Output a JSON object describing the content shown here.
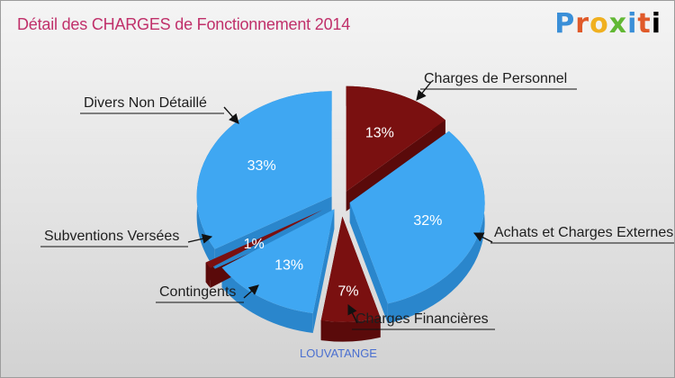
{
  "title": "Détail des CHARGES de Fonctionnement 2014",
  "logo": [
    "P",
    "r",
    "o",
    "x",
    "i",
    "t",
    "i"
  ],
  "location": "LOUVATANGE",
  "colors": {
    "blue": "#3fa7f2",
    "blue_side": "#2a86cc",
    "red": "#7a1010",
    "red_side": "#5a0a0a",
    "title": "#c0306a"
  },
  "chart_data": {
    "type": "pie",
    "style": "3d-exploded",
    "slices": [
      {
        "label": "Charges de Personnel",
        "value": 13,
        "percent_label": "13%",
        "color": "red"
      },
      {
        "label": "Achats et Charges Externes",
        "value": 32,
        "percent_label": "32%",
        "color": "blue"
      },
      {
        "label": "Charges Financières",
        "value": 7,
        "percent_label": "7%",
        "color": "red"
      },
      {
        "label": "Contingents",
        "value": 13,
        "percent_label": "13%",
        "color": "blue"
      },
      {
        "label": "Subventions Versées",
        "value": 1,
        "percent_label": "1%",
        "color": "red"
      },
      {
        "label": "Divers Non Détaillé",
        "value": 33,
        "percent_label": "33%",
        "color": "blue"
      }
    ]
  }
}
